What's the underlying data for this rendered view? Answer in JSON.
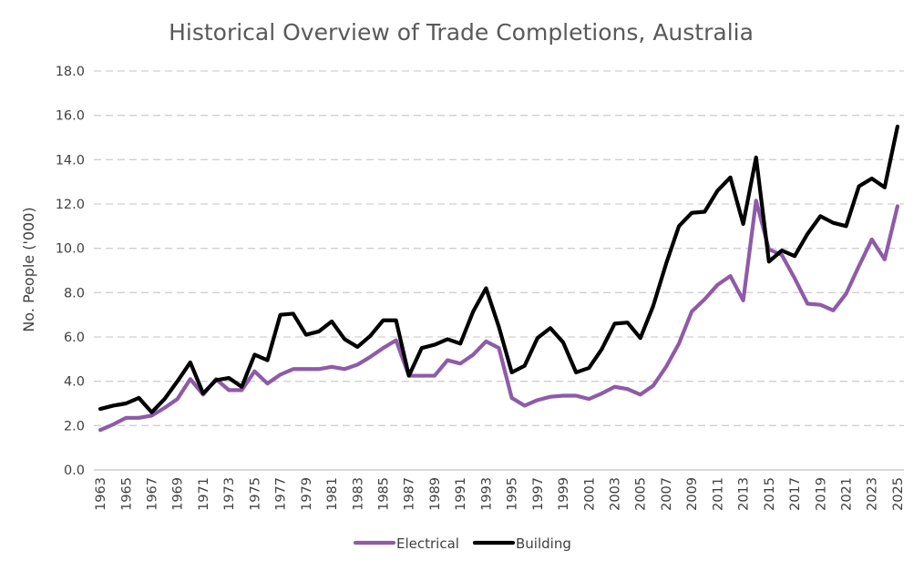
{
  "chart_data": {
    "type": "line",
    "title": "Historical Overview of Trade Completions, Australia",
    "xlabel": "",
    "ylabel": "No. People ('000)",
    "ylim": [
      0,
      18
    ],
    "ytick_labels": [
      "0.0",
      "2.0",
      "4.0",
      "6.0",
      "8.0",
      "10.0",
      "12.0",
      "14.0",
      "16.0",
      "18.0"
    ],
    "x": [
      1963,
      1964,
      1965,
      1966,
      1967,
      1968,
      1969,
      1970,
      1971,
      1972,
      1973,
      1974,
      1975,
      1976,
      1977,
      1978,
      1979,
      1980,
      1981,
      1982,
      1983,
      1984,
      1985,
      1986,
      1987,
      1988,
      1989,
      1990,
      1991,
      1992,
      1993,
      1994,
      1995,
      1996,
      1997,
      1998,
      1999,
      2000,
      2001,
      2002,
      2003,
      2004,
      2005,
      2006,
      2007,
      2008,
      2009,
      2010,
      2011,
      2012,
      2013,
      2014,
      2015,
      2016,
      2017,
      2018,
      2019,
      2020,
      2021,
      2022,
      2023,
      2024,
      2025
    ],
    "xtick_labels": [
      "1963",
      "1965",
      "1967",
      "1969",
      "1971",
      "1973",
      "1975",
      "1977",
      "1979",
      "1981",
      "1983",
      "1985",
      "1987",
      "1989",
      "1991",
      "1993",
      "1995",
      "1997",
      "1999",
      "2001",
      "2003",
      "2005",
      "2007",
      "2009",
      "2011",
      "2013",
      "2015",
      "2017",
      "2019",
      "2021",
      "2023",
      "2025"
    ],
    "grid": true,
    "legend_position": "bottom",
    "series": [
      {
        "name": "Electrical",
        "color": "#8e5ba8",
        "values": [
          1.8,
          2.05,
          2.35,
          2.35,
          2.45,
          2.8,
          3.2,
          4.1,
          3.4,
          4.1,
          3.6,
          3.6,
          4.45,
          3.9,
          4.3,
          4.55,
          4.55,
          4.55,
          4.65,
          4.55,
          4.75,
          5.1,
          5.5,
          5.85,
          4.25,
          4.25,
          4.25,
          4.95,
          4.8,
          5.2,
          5.8,
          5.5,
          3.25,
          2.9,
          3.15,
          3.3,
          3.35,
          3.35,
          3.2,
          3.45,
          3.75,
          3.65,
          3.4,
          3.8,
          4.65,
          5.7,
          7.15,
          7.7,
          8.35,
          8.75,
          7.65,
          12.15,
          9.95,
          9.7,
          8.65,
          7.5,
          7.45,
          7.2,
          7.95,
          9.2,
          10.4,
          9.5,
          11.9
        ]
      },
      {
        "name": "Building",
        "color": "#000000",
        "values": [
          2.75,
          2.9,
          3.0,
          3.25,
          2.6,
          3.2,
          4.0,
          4.85,
          3.45,
          4.05,
          4.15,
          3.75,
          5.2,
          4.95,
          7.0,
          7.05,
          6.1,
          6.25,
          6.7,
          5.9,
          5.55,
          6.05,
          6.75,
          6.75,
          4.25,
          5.5,
          5.65,
          5.9,
          5.7,
          7.15,
          8.2,
          6.45,
          4.4,
          4.7,
          5.95,
          6.4,
          5.75,
          4.4,
          4.6,
          5.45,
          6.6,
          6.65,
          5.95,
          7.4,
          9.3,
          11.0,
          11.6,
          11.65,
          12.6,
          13.2,
          11.1,
          14.1,
          9.4,
          9.9,
          9.65,
          10.65,
          11.45,
          11.15,
          11.0,
          12.8,
          13.15,
          12.75,
          15.5
        ]
      }
    ]
  }
}
